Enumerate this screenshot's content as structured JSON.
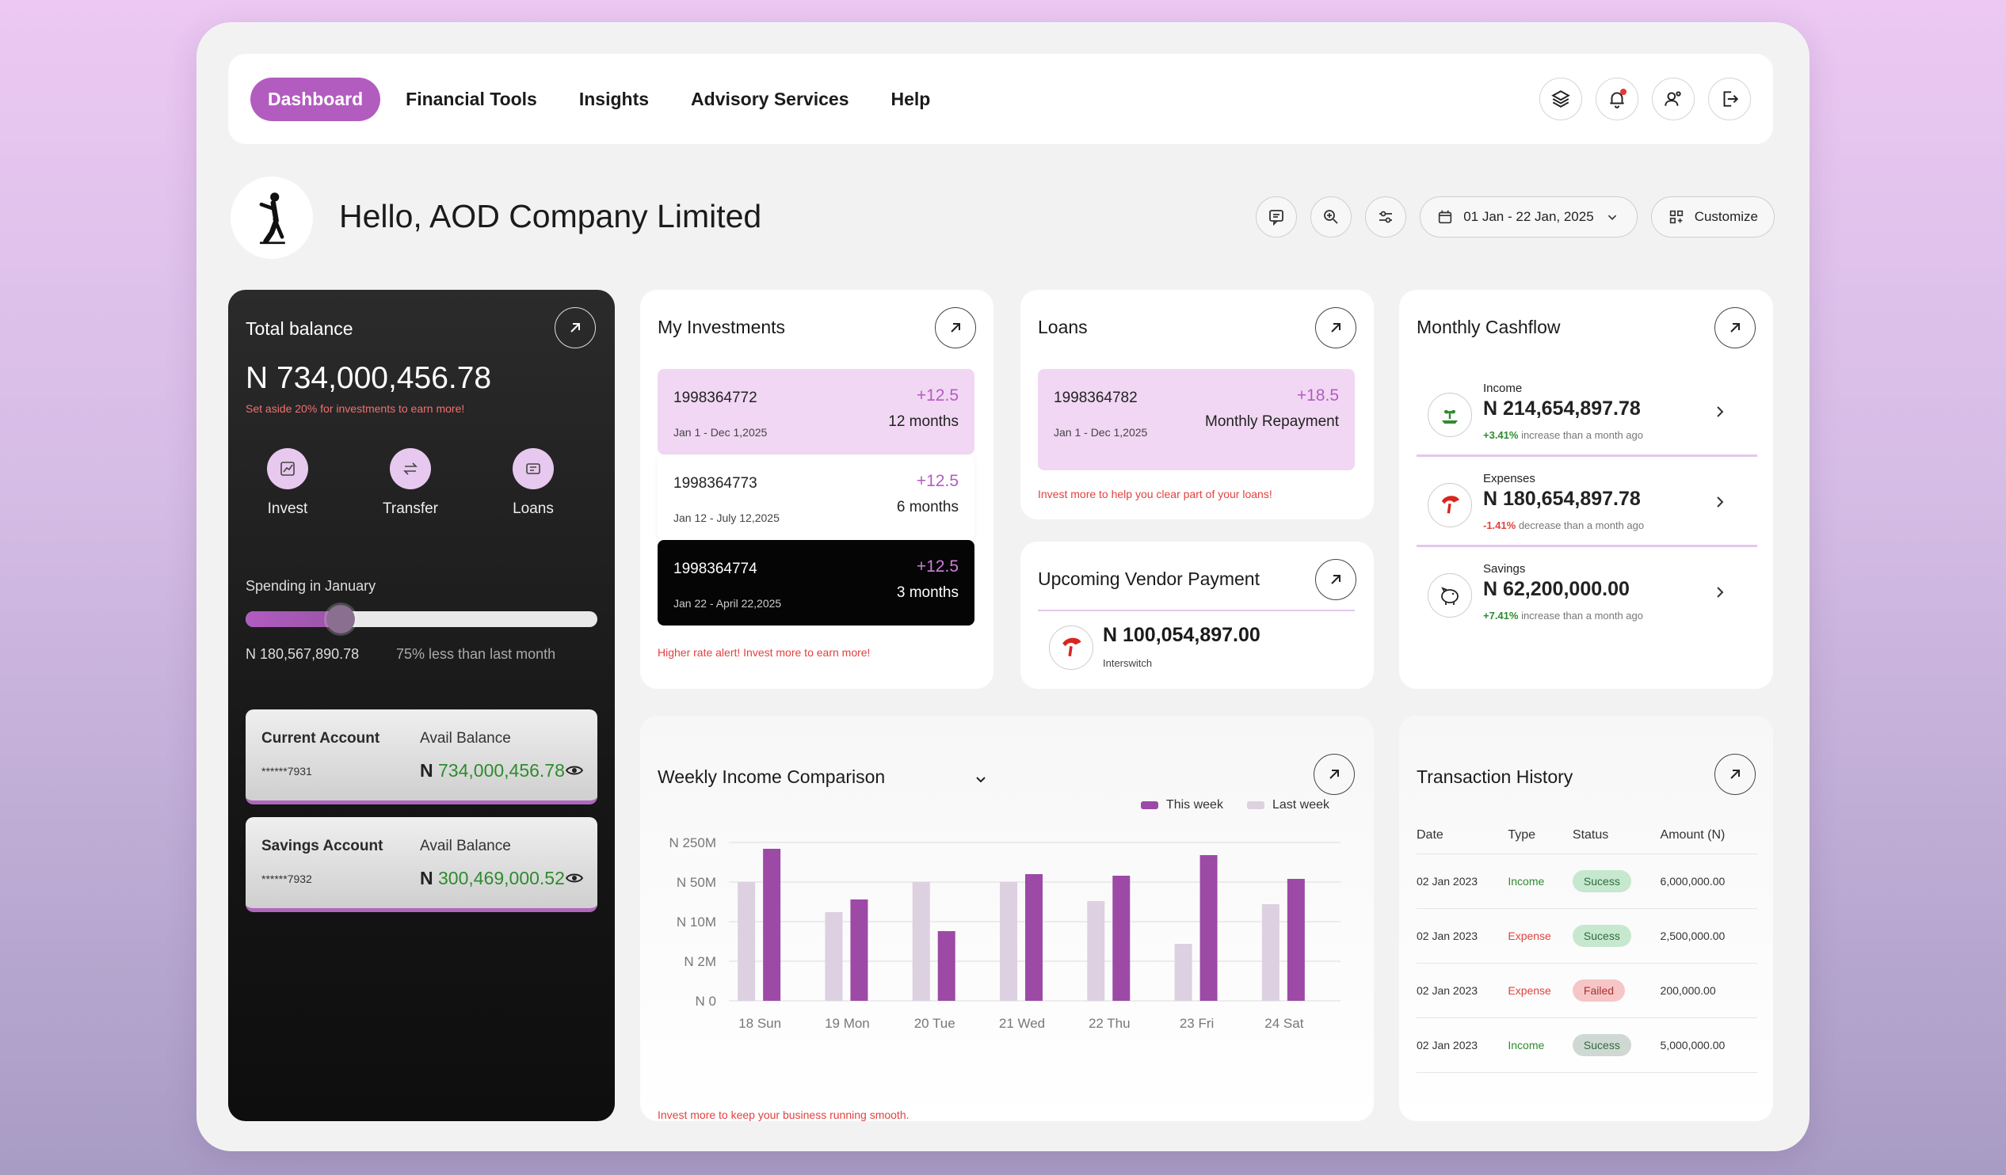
{
  "nav": {
    "items": [
      "Dashboard",
      "Financial Tools",
      "Insights",
      "Advisory Services",
      "Help"
    ],
    "icons": [
      "layers-icon",
      "bell-icon",
      "user-settings-icon",
      "logout-icon"
    ]
  },
  "header": {
    "greeting": "Hello, AOD Company Limited",
    "date_range": "01 Jan - 22 Jan, 2025",
    "customize": "Customize"
  },
  "balance": {
    "title": "Total balance",
    "amount": "N 734,000,456.78",
    "note": "Set aside 20% for investments to earn more!",
    "actions": [
      "Invest",
      "Transfer",
      "Loans"
    ],
    "spending_label": "Spending in January",
    "spending_progress": 0.27,
    "spending_amount": "N 180,567,890.78",
    "spending_compare": "75% less than last month",
    "accounts": [
      {
        "name": "Current Account",
        "number": "******7931",
        "avail_label": "Avail Balance",
        "currency": "N",
        "balance": "734,000,456.78"
      },
      {
        "name": "Savings Account",
        "number": "******7932",
        "avail_label": "Avail Balance",
        "currency": "N",
        "balance": "300,469,000.52"
      }
    ]
  },
  "investments": {
    "title": "My Investments",
    "items": [
      {
        "id": "1998364772",
        "rate": "+12.5",
        "duration": "12 months",
        "dates": "Jan 1 - Dec 1,2025"
      },
      {
        "id": "1998364773",
        "rate": "+12.5",
        "duration": "6 months",
        "dates": "Jan 12 - July 12,2025"
      },
      {
        "id": "1998364774",
        "rate": "+12.5",
        "duration": "3 months",
        "dates": "Jan 22 - April 22,2025"
      }
    ],
    "note": "Higher rate alert! Invest more to earn more!"
  },
  "loans": {
    "title": "Loans",
    "id": "1998364782",
    "rate": "+18.5",
    "repayment": "Monthly Repayment",
    "dates": "Jan 1 - Dec 1,2025",
    "note": "Invest more to help you clear part of your loans!"
  },
  "vendor": {
    "title": "Upcoming Vendor Payment",
    "amount": "N 100,054,897.00",
    "name": "Interswitch"
  },
  "cashflow": {
    "title": "Monthly Cashflow",
    "rows": [
      {
        "label": "Income",
        "amount": "N 214,654,897.78",
        "change": "+3.41%",
        "change_text": " increase than a month ago",
        "color": "#2e8b2e"
      },
      {
        "label": "Expenses",
        "amount": "N 180,654,897.78",
        "change": "-1.41%",
        "change_text": " decrease than a month ago",
        "color": "#e0423f"
      },
      {
        "label": "Savings",
        "amount": "N 62,200,000.00",
        "change": "+7.41%",
        "change_text": " increase than a month ago",
        "color": "#2e8b2e"
      }
    ]
  },
  "weekly": {
    "title": "Weekly Income Comparison",
    "note": "Invest more to keep your business running smooth."
  },
  "chart_data": {
    "type": "bar",
    "categories": [
      "18 Sun",
      "19 Mon",
      "20 Tue",
      "21 Wed",
      "22 Thu",
      "23 Fri",
      "24 Sat"
    ],
    "series": [
      {
        "name": "Last week",
        "values": [
          0.75,
          0.56,
          0.75,
          0.75,
          0.63,
          0.36,
          0.61
        ],
        "color": "#ddd0e0"
      },
      {
        "name": "This week",
        "values": [
          0.96,
          0.64,
          0.44,
          0.8,
          0.79,
          0.92,
          0.77
        ],
        "color": "#9c4aa6"
      }
    ],
    "ytick_labels": [
      "N 250M",
      "N 50M",
      "N 10M",
      "N 2M",
      "N 0"
    ],
    "ylim": [
      0,
      1
    ],
    "grid": true,
    "legend": "top-right"
  },
  "transactions": {
    "title": "Transaction History",
    "headers": [
      "Date",
      "Type",
      "Status",
      "Amount (N)"
    ],
    "rows": [
      {
        "date": "02 Jan 2023",
        "type": "Income",
        "status": "Sucess",
        "amount": "6,000,000.00"
      },
      {
        "date": "02 Jan 2023",
        "type": "Expense",
        "status": "Sucess",
        "amount": "2,500,000.00"
      },
      {
        "date": "02 Jan 2023",
        "type": "Expense",
        "status": "Failed",
        "amount": "200,000.00"
      },
      {
        "date": "02 Jan 2023",
        "type": "Income",
        "status": "Sucess",
        "amount": "5,000,000.00"
      }
    ]
  }
}
